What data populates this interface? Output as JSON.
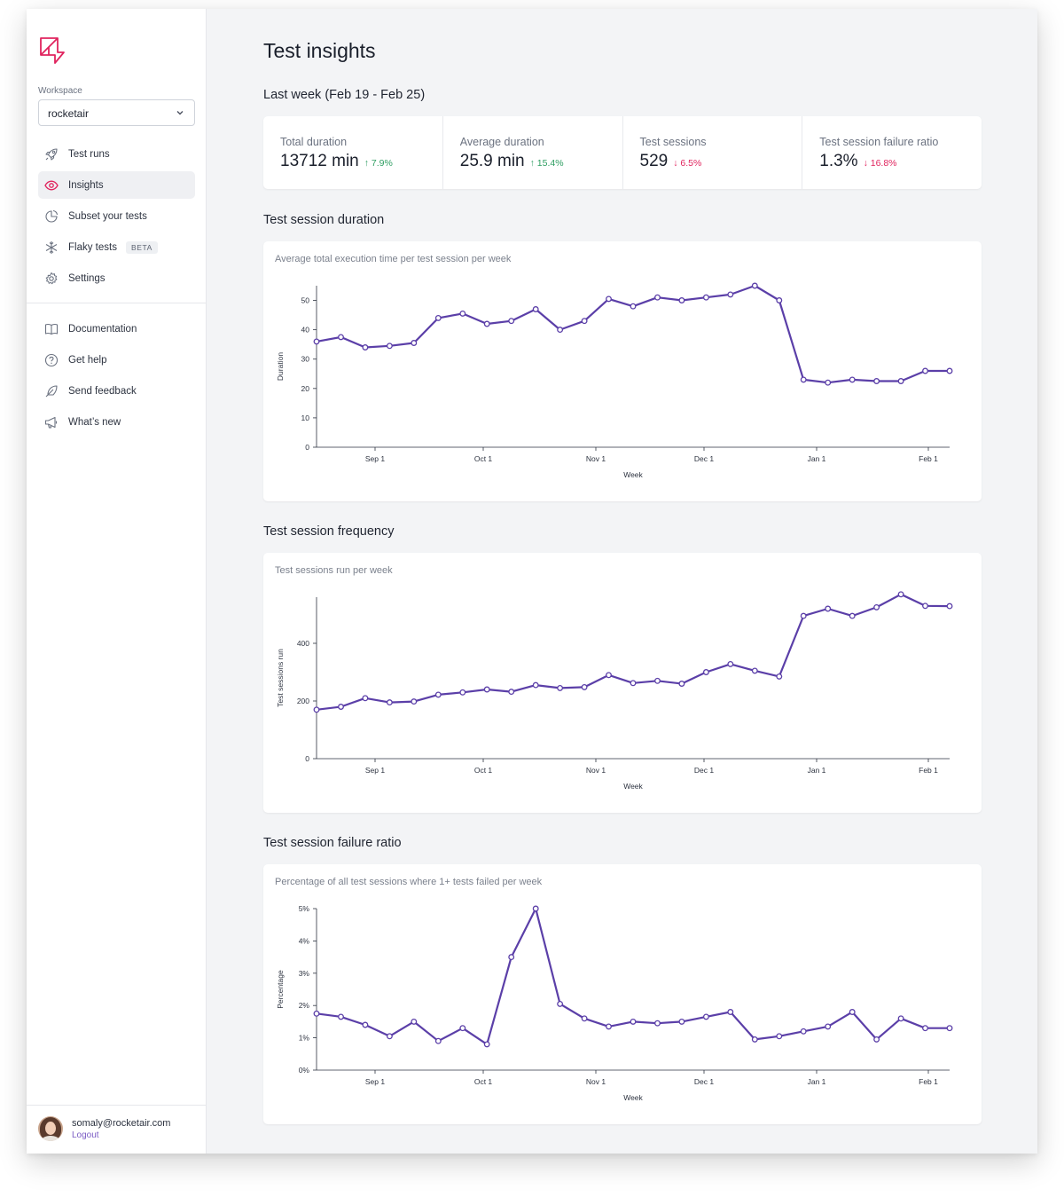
{
  "sidebar": {
    "workspace_label": "Workspace",
    "workspace_value": "rocketair",
    "nav_primary": [
      {
        "label": "Test runs",
        "icon": "rocket-icon"
      },
      {
        "label": "Insights",
        "icon": "eye-icon",
        "active": true
      },
      {
        "label": "Subset your tests",
        "icon": "clock-pie-icon"
      },
      {
        "label": "Flaky tests",
        "icon": "snowflake-icon",
        "badge": "BETA"
      },
      {
        "label": "Settings",
        "icon": "gear-icon"
      }
    ],
    "nav_secondary": [
      {
        "label": "Documentation",
        "icon": "book-icon"
      },
      {
        "label": "Get help",
        "icon": "question-icon"
      },
      {
        "label": "Send feedback",
        "icon": "feather-icon"
      },
      {
        "label": "What’s new",
        "icon": "megaphone-icon"
      }
    ],
    "user": {
      "email": "somaly@rocketair.com",
      "logout": "Logout"
    }
  },
  "main": {
    "title": "Test insights",
    "period": "Last week (Feb 19 - Feb 25)",
    "stats": [
      {
        "label": "Total duration",
        "value": "13712 min",
        "delta": "7.9%",
        "direction": "up"
      },
      {
        "label": "Average duration",
        "value": "25.9 min",
        "delta": "15.4%",
        "direction": "up"
      },
      {
        "label": "Test sessions",
        "value": "529",
        "delta": "6.5%",
        "direction": "down"
      },
      {
        "label": "Test session failure ratio",
        "value": "1.3%",
        "delta": "16.8%",
        "direction": "down"
      }
    ],
    "sections": [
      {
        "title": "Test session duration",
        "subtitle": "Average total execution time per test session per week"
      },
      {
        "title": "Test session frequency",
        "subtitle": "Test sessions run per week"
      },
      {
        "title": "Test session failure ratio",
        "subtitle": "Percentage of all test sessions where 1+ tests failed per week"
      }
    ]
  },
  "colors": {
    "series": "#5b3fa8",
    "up": "#2f9e62",
    "down": "#e0245e",
    "logo": "#e0245e"
  },
  "chart_data": [
    {
      "type": "line",
      "xlabel": "Week",
      "ylabel": "Duration",
      "xticks": [
        "Sep 1",
        "Oct 1",
        "Nov 1",
        "Dec 1",
        "Jan 1",
        "Feb 1"
      ],
      "yticks": [
        "0",
        "10",
        "20",
        "30",
        "40",
        "50"
      ],
      "ylim": [
        0,
        55
      ],
      "x": [
        "Aug 6",
        "Aug 13",
        "Aug 20",
        "Aug 27",
        "Sep 3",
        "Sep 10",
        "Sep 17",
        "Sep 24",
        "Oct 1",
        "Oct 8",
        "Oct 15",
        "Oct 22",
        "Oct 29",
        "Nov 5",
        "Nov 12",
        "Nov 19",
        "Nov 26",
        "Dec 3",
        "Dec 10",
        "Dec 17",
        "Dec 24",
        "Dec 31",
        "Jan 7",
        "Jan 14",
        "Jan 21",
        "Jan 28",
        "Feb 4"
      ],
      "series": [
        {
          "values": [
            36,
            37.5,
            34,
            34.5,
            35.5,
            44,
            45.5,
            42,
            43,
            47,
            40,
            43,
            50.5,
            48,
            51,
            50,
            51,
            52,
            55,
            50,
            23,
            22,
            23,
            22.5,
            22.5,
            26,
            26
          ]
        }
      ]
    },
    {
      "type": "line",
      "xlabel": "Week",
      "ylabel": "Test sessions run",
      "xticks": [
        "Sep 1",
        "Oct 1",
        "Nov 1",
        "Dec 1",
        "Jan 1",
        "Feb 1"
      ],
      "yticks": [
        "0",
        "200",
        "400"
      ],
      "ylim": [
        0,
        560
      ],
      "x": [
        "Aug 6",
        "Aug 13",
        "Aug 20",
        "Aug 27",
        "Sep 3",
        "Sep 10",
        "Sep 17",
        "Sep 24",
        "Oct 1",
        "Oct 8",
        "Oct 15",
        "Oct 22",
        "Oct 29",
        "Nov 5",
        "Nov 12",
        "Nov 19",
        "Nov 26",
        "Dec 3",
        "Dec 10",
        "Dec 17",
        "Dec 24",
        "Dec 31",
        "Jan 7",
        "Jan 14",
        "Jan 21",
        "Jan 28",
        "Feb 4"
      ],
      "series": [
        {
          "values": [
            170,
            180,
            210,
            195,
            198,
            222,
            230,
            240,
            232,
            255,
            245,
            248,
            290,
            262,
            270,
            260,
            300,
            328,
            305,
            285,
            495,
            520,
            495,
            525,
            570,
            530,
            529
          ]
        }
      ]
    },
    {
      "type": "line",
      "xlabel": "Week",
      "ylabel": "Percentage",
      "xticks": [
        "Sep 1",
        "Oct 1",
        "Nov 1",
        "Dec 1",
        "Jan 1",
        "Feb 1"
      ],
      "yticks": [
        "0%",
        "1%",
        "2%",
        "3%",
        "4%",
        "5%"
      ],
      "ylim": [
        0,
        5
      ],
      "x": [
        "Aug 6",
        "Aug 13",
        "Aug 20",
        "Aug 27",
        "Sep 3",
        "Sep 10",
        "Sep 17",
        "Sep 24",
        "Oct 1",
        "Oct 8",
        "Oct 15",
        "Oct 22",
        "Oct 29",
        "Nov 5",
        "Nov 12",
        "Nov 19",
        "Nov 26",
        "Dec 3",
        "Dec 10",
        "Dec 17",
        "Dec 24",
        "Dec 31",
        "Jan 7",
        "Jan 14",
        "Jan 21",
        "Jan 28",
        "Feb 4"
      ],
      "series": [
        {
          "values": [
            1.75,
            1.65,
            1.4,
            1.05,
            1.5,
            0.9,
            1.3,
            0.8,
            3.5,
            5.0,
            2.05,
            1.6,
            1.35,
            1.5,
            1.45,
            1.5,
            1.65,
            1.8,
            0.95,
            1.05,
            1.2,
            1.35,
            1.8,
            0.95,
            1.6,
            1.3,
            1.3
          ]
        }
      ]
    }
  ]
}
